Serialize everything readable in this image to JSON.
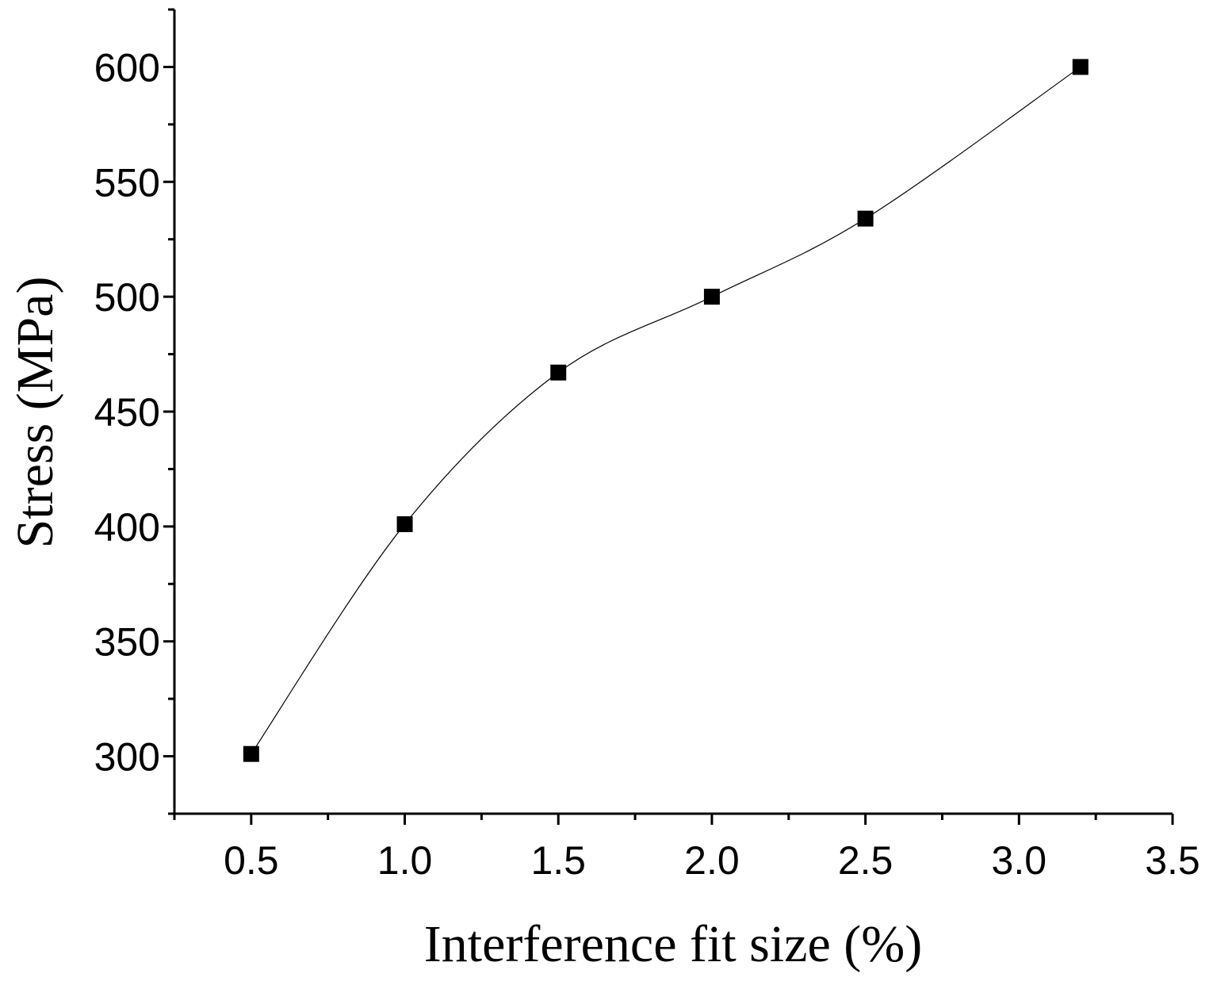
{
  "chart_data": {
    "type": "line",
    "title": "",
    "xlabel": "Interference fit size (%)",
    "ylabel": "Stress (MPa)",
    "xlim": [
      0.25,
      3.5
    ],
    "ylim": [
      275,
      625
    ],
    "x_ticks": [
      "0.5",
      "1.0",
      "1.5",
      "2.0",
      "2.5",
      "3.0",
      "3.5"
    ],
    "x_tick_values": [
      0.5,
      1.0,
      1.5,
      2.0,
      2.5,
      3.0,
      3.5
    ],
    "x_minor_step": 0.25,
    "y_ticks": [
      "300",
      "350",
      "400",
      "450",
      "500",
      "550",
      "600"
    ],
    "y_tick_values": [
      300,
      350,
      400,
      450,
      500,
      550,
      600
    ],
    "y_minor_step": 25,
    "grid": false,
    "marker": "square",
    "line": "smooth",
    "series": [
      {
        "x": [
          0.5,
          1.0,
          1.5,
          2.0,
          2.5,
          3.2
        ],
        "values": [
          301,
          401,
          467,
          500,
          534,
          600
        ]
      }
    ]
  }
}
